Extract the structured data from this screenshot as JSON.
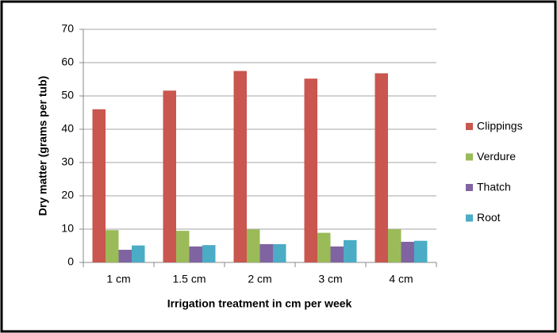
{
  "chart_data": {
    "type": "bar",
    "x_label": "Irrigation treatment in cm per week",
    "y_label": "Dry matter (grams per tub)",
    "categories": [
      "1 cm",
      "1.5 cm",
      "2 cm",
      "3 cm",
      "4 cm"
    ],
    "series": [
      {
        "name": "Clippings",
        "color": "#c9564f",
        "values": [
          46,
          51.6,
          57.5,
          55.2,
          56.8
        ]
      },
      {
        "name": "Verdure",
        "color": "#9bbb59",
        "values": [
          9.7,
          9.5,
          9.9,
          8.9,
          10
        ]
      },
      {
        "name": "Thatch",
        "color": "#8064a2",
        "values": [
          3.8,
          4.8,
          5.5,
          4.8,
          6.2
        ]
      },
      {
        "name": "Root",
        "color": "#4bacc6",
        "values": [
          5.1,
          5.2,
          5.5,
          6.7,
          6.5
        ]
      }
    ],
    "ylim": [
      0,
      70
    ],
    "yticks": [
      0,
      10,
      20,
      30,
      40,
      50,
      60,
      70
    ],
    "grid": true,
    "legend": "right"
  }
}
